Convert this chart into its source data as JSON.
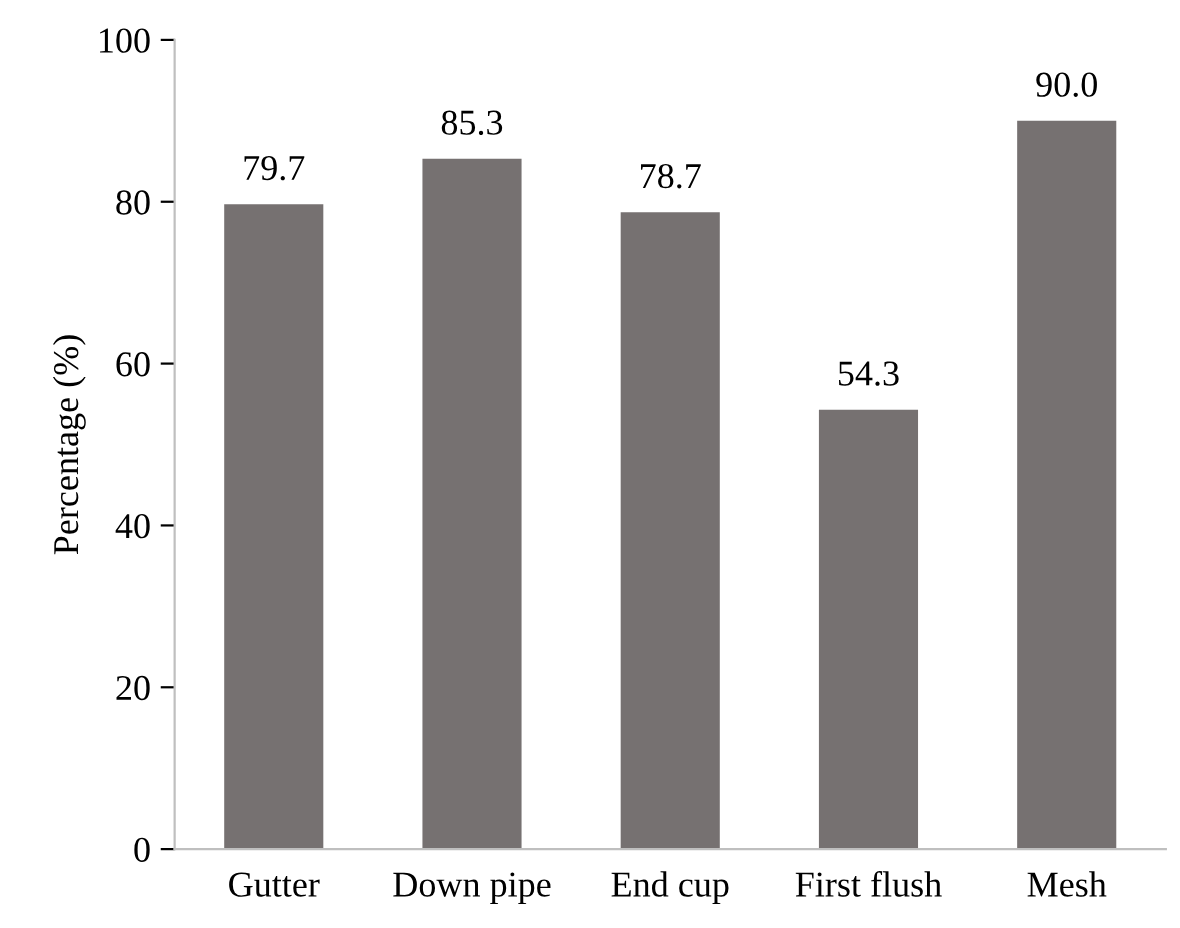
{
  "chart_data": {
    "type": "bar",
    "ylabel": "Percentage (%)",
    "categories": [
      "Gutter",
      "Down pipe",
      "End cup",
      "First flush",
      "Mesh"
    ],
    "values": [
      79.7,
      85.3,
      78.7,
      54.3,
      90.0
    ],
    "value_labels": [
      "79.7",
      "85.3",
      "78.7",
      "54.3",
      "90.0"
    ],
    "color": "#767171",
    "ylim": [
      0,
      100
    ],
    "yticks": [
      0,
      20,
      40,
      60,
      80,
      100
    ],
    "grid": false,
    "legend": false
  }
}
